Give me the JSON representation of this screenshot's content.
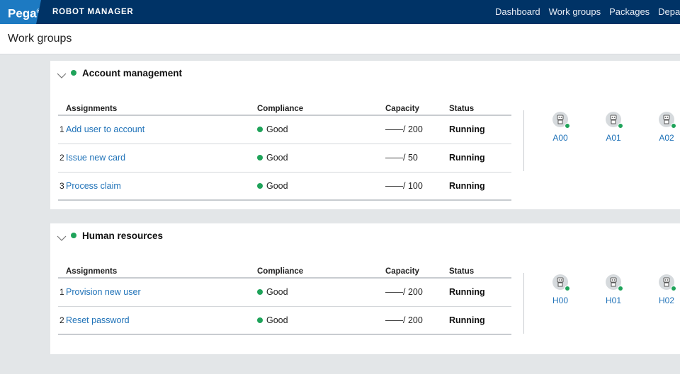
{
  "header": {
    "logo": "Pega",
    "logo_mark": "®",
    "app_name": "ROBOT MANAGER",
    "nav": [
      "Dashboard",
      "Work groups",
      "Packages",
      "Departm"
    ]
  },
  "page": {
    "title": "Work groups"
  },
  "columns": {
    "assignments": "Assignments",
    "compliance": "Compliance",
    "capacity": "Capacity",
    "status": "Status"
  },
  "groups": [
    {
      "name": "Account management",
      "status_color": "#1fa35a",
      "rows": [
        {
          "num": "1",
          "assignment": "Add user to account",
          "compliance": "Good",
          "capacity": "——/ 200",
          "status": "Running"
        },
        {
          "num": "2",
          "assignment": "Issue new card",
          "compliance": "Good",
          "capacity": "——/ 50",
          "status": "Running"
        },
        {
          "num": "3",
          "assignment": "Process claim",
          "compliance": "Good",
          "capacity": "——/ 100",
          "status": "Running"
        }
      ],
      "robots": [
        "A00",
        "A01",
        "A02"
      ]
    },
    {
      "name": "Human resources",
      "status_color": "#1fa35a",
      "rows": [
        {
          "num": "1",
          "assignment": "Provision new user",
          "compliance": "Good",
          "capacity": "——/ 200",
          "status": "Running"
        },
        {
          "num": "2",
          "assignment": "Reset password",
          "compliance": "Good",
          "capacity": "——/ 200",
          "status": "Running"
        }
      ],
      "robots": [
        "H00",
        "H01",
        "H02"
      ]
    }
  ],
  "icons": {
    "collapse": "chevron-down-icon",
    "robot": "robot-icon",
    "status": "status-dot-icon"
  },
  "colors": {
    "topbar": "#003366",
    "logo_bg": "#1d7ac2",
    "good": "#1fa35a",
    "link": "#1f72b8"
  }
}
